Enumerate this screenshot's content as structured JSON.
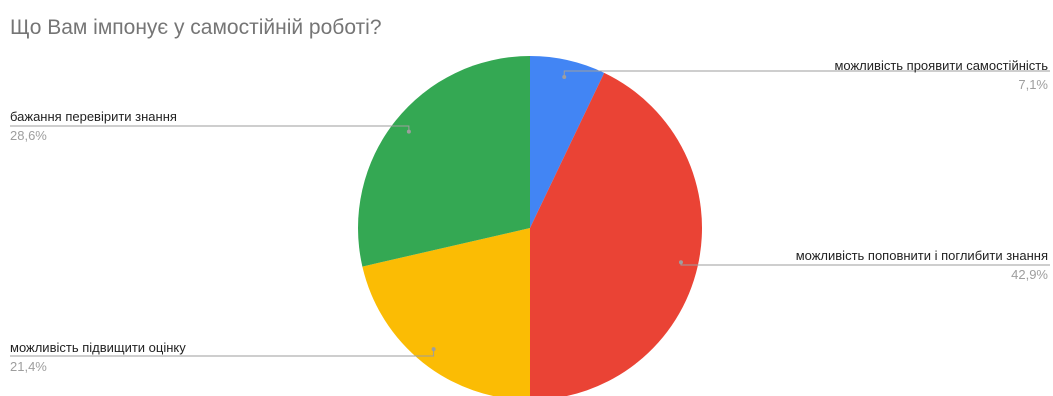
{
  "chart_data": {
    "type": "pie",
    "title": "Що Вам імпонує у самостійній роботі?",
    "slices": [
      {
        "label": "можливість проявити самостійність",
        "value": 7.1,
        "display": "7,1%",
        "color": "#4285f4"
      },
      {
        "label": "можливість поповнити і поглибити знання",
        "value": 42.9,
        "display": "42,9%",
        "color": "#ea4335"
      },
      {
        "label": "можливість підвищити оцінку",
        "value": 21.4,
        "display": "21,4%",
        "color": "#fbbc04"
      },
      {
        "label": "бажання перевірити знання",
        "value": 28.6,
        "display": "28,6%",
        "color": "#34a853"
      }
    ],
    "legend": "none",
    "start_angle": "top",
    "direction": "clockwise"
  }
}
